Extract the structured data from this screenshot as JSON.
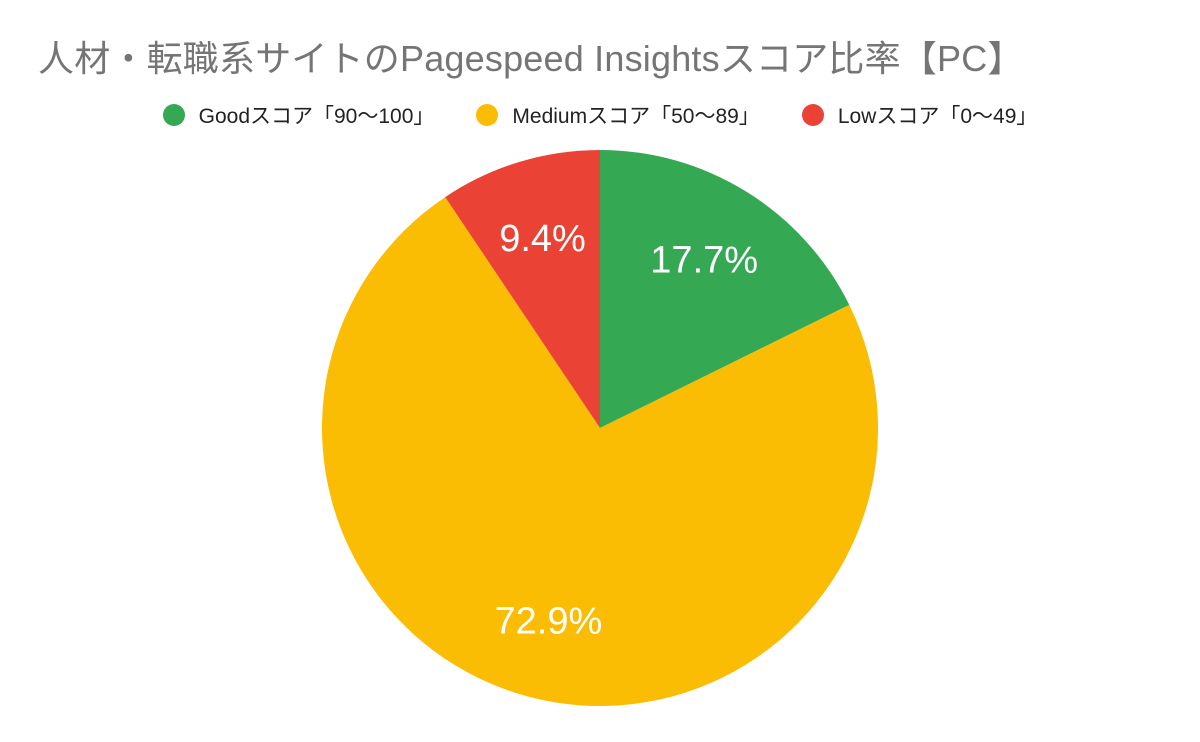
{
  "chart_data": {
    "type": "pie",
    "title": "人材・転職系サイトのPagespeed Insightsスコア比率【PC】",
    "legend_position": "top",
    "slices": [
      {
        "name": "Goodスコア「90〜100」",
        "value": 17.7,
        "label": "17.7%",
        "color": "#34a853"
      },
      {
        "name": "Mediumスコア「50〜89」",
        "value": 72.9,
        "label": "72.9%",
        "color": "#fbbc04"
      },
      {
        "name": "Lowスコア「0〜49」",
        "value": 9.4,
        "label": "9.4%",
        "color": "#ea4335"
      }
    ]
  }
}
